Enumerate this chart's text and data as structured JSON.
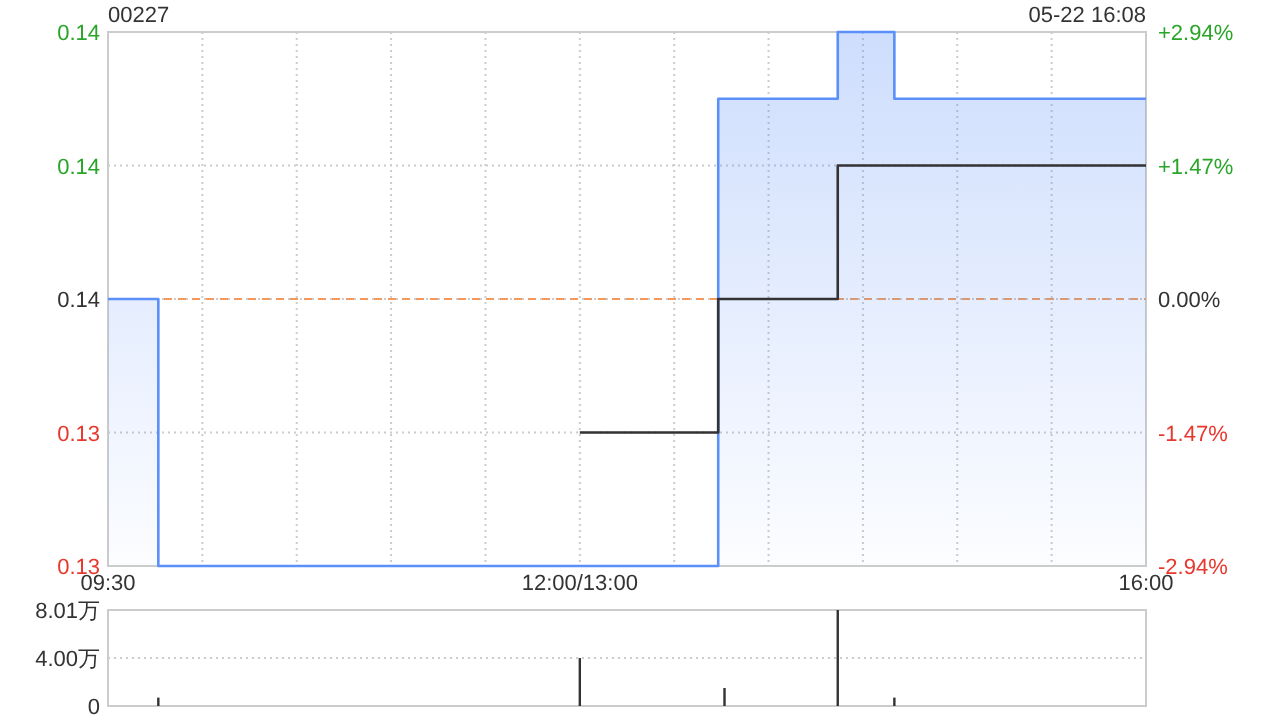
{
  "chart_data": [
    {
      "type": "step",
      "title": "00227",
      "annotations": [
        "05-22 16:08"
      ],
      "categories": [
        "09:30",
        null,
        null,
        null,
        null,
        null,
        null,
        null,
        null,
        null,
        null,
        null,
        null,
        null,
        null,
        null,
        null,
        null,
        null,
        null,
        null,
        null,
        null,
        null,
        null,
        null,
        null,
        null,
        null,
        null,
        null,
        null,
        null,
        null,
        null,
        null,
        null,
        null,
        null,
        null,
        null,
        null,
        null,
        null,
        null,
        null,
        null,
        null,
        null,
        null,
        null,
        null,
        null,
        null,
        null,
        null,
        null,
        null,
        null,
        null,
        null,
        null,
        null,
        null,
        null,
        null,
        null,
        null,
        null,
        null,
        null,
        null,
        null,
        null,
        null,
        "12:00/13:00",
        null,
        null,
        null,
        null,
        null,
        null,
        null,
        null,
        null,
        null,
        null,
        null,
        null,
        null,
        null,
        null,
        null,
        null,
        null,
        null,
        null,
        null,
        null,
        null,
        null,
        null,
        null,
        null,
        null,
        null,
        null,
        null,
        null,
        null,
        null,
        null,
        null,
        null,
        null,
        null,
        null,
        null,
        null,
        null,
        null,
        null,
        null,
        null,
        null,
        null,
        null,
        null,
        null,
        null,
        null,
        null,
        null,
        null,
        null,
        null,
        null,
        null,
        null,
        null,
        null,
        null,
        null,
        null,
        null,
        null,
        null,
        null,
        null,
        null,
        null,
        null,
        null,
        null,
        null,
        null,
        null,
        null,
        null,
        null,
        null,
        null,
        null,
        null,
        null,
        "16:00"
      ],
      "ylim": [
        0.132,
        0.14
      ],
      "yticks": [
        {
          "value": 0.14,
          "label": "0.14"
        },
        {
          "value": 0.138,
          "label": "0.14"
        },
        {
          "value": 0.136,
          "label": "0.14"
        },
        {
          "value": 0.134,
          "label": "0.13"
        },
        {
          "value": 0.132,
          "label": "0.13"
        }
      ],
      "y2lim": [
        -2.94,
        2.94
      ],
      "y2ticks": [
        {
          "value": 2.94,
          "label": "+2.94%"
        },
        {
          "value": 1.47,
          "label": "+1.47%"
        },
        {
          "value": 0,
          "label": "0.00%"
        },
        {
          "value": -1.47,
          "label": "-1.47%"
        },
        {
          "value": -2.94,
          "label": "-2.94%"
        }
      ],
      "grid": true,
      "marker": "none",
      "ref_lines": [
        {
          "axis": "y",
          "value": 0.136,
          "color": "#f29a5c",
          "line_style": "dashed"
        }
      ],
      "series": [
        {
          "type": "area",
          "color": "#5b8ff9",
          "values": [
            0.136,
            0.136,
            0.136,
            0.136,
            0.136,
            0.136,
            0.136,
            0.136,
            0.132,
            0.132,
            0.132,
            0.132,
            0.132,
            0.132,
            0.132,
            0.132,
            0.132,
            0.132,
            0.132,
            0.132,
            0.132,
            0.132,
            0.132,
            0.132,
            0.132,
            0.132,
            0.132,
            0.132,
            0.132,
            0.132,
            0.132,
            0.132,
            0.132,
            0.132,
            0.132,
            0.132,
            0.132,
            0.132,
            0.132,
            0.132,
            0.132,
            0.132,
            0.132,
            0.132,
            0.132,
            0.132,
            0.132,
            0.132,
            0.132,
            0.132,
            0.132,
            0.132,
            0.132,
            0.132,
            0.132,
            0.132,
            0.132,
            0.132,
            0.132,
            0.132,
            0.132,
            0.132,
            0.132,
            0.132,
            0.132,
            0.132,
            0.132,
            0.132,
            0.132,
            0.132,
            0.132,
            0.132,
            0.132,
            0.132,
            0.132,
            0.132,
            0.132,
            0.132,
            0.132,
            0.132,
            0.132,
            0.132,
            0.132,
            0.132,
            0.132,
            0.132,
            0.132,
            0.132,
            0.132,
            0.132,
            0.132,
            0.132,
            0.132,
            0.132,
            0.132,
            0.132,
            0.132,
            0.139,
            0.139,
            0.139,
            0.139,
            0.139,
            0.139,
            0.139,
            0.139,
            0.139,
            0.139,
            0.139,
            0.139,
            0.139,
            0.139,
            0.139,
            0.139,
            0.139,
            0.139,
            0.139,
            0.14,
            0.14,
            0.14,
            0.14,
            0.14,
            0.14,
            0.14,
            0.14,
            0.14,
            0.139,
            0.139,
            0.139,
            0.139,
            0.139,
            0.139,
            0.139,
            0.139,
            0.139,
            0.139,
            0.139,
            0.139,
            0.139,
            0.139,
            0.139,
            0.139,
            0.139,
            0.139,
            0.139,
            0.139,
            0.139,
            0.139,
            0.139,
            0.139,
            0.139,
            0.139,
            0.139,
            0.139,
            0.139,
            0.139,
            0.139,
            0.139,
            0.139,
            0.139,
            0.139,
            0.139,
            0.139,
            0.139,
            0.139,
            0.139,
            0.139
          ]
        },
        {
          "type": "step",
          "color": "#333333",
          "values": [
            null,
            null,
            null,
            null,
            null,
            null,
            null,
            null,
            null,
            null,
            null,
            null,
            null,
            null,
            null,
            null,
            null,
            null,
            null,
            null,
            null,
            null,
            null,
            null,
            null,
            null,
            null,
            null,
            null,
            null,
            null,
            null,
            null,
            null,
            null,
            null,
            null,
            null,
            null,
            null,
            null,
            null,
            null,
            null,
            null,
            null,
            null,
            null,
            null,
            null,
            null,
            null,
            null,
            null,
            null,
            null,
            null,
            null,
            null,
            null,
            null,
            null,
            null,
            null,
            null,
            null,
            null,
            null,
            null,
            null,
            null,
            null,
            null,
            null,
            null,
            0.134,
            0.134,
            0.134,
            0.134,
            0.134,
            0.134,
            0.134,
            0.134,
            0.134,
            0.134,
            0.134,
            0.134,
            0.134,
            0.134,
            0.134,
            0.134,
            0.134,
            0.134,
            0.134,
            0.134,
            0.134,
            0.134,
            0.136,
            0.136,
            0.136,
            0.136,
            0.136,
            0.136,
            0.136,
            0.136,
            0.136,
            0.136,
            0.136,
            0.136,
            0.136,
            0.136,
            0.136,
            0.136,
            0.136,
            0.136,
            0.136,
            0.138,
            0.138,
            0.138,
            0.138,
            0.138,
            0.138,
            0.138,
            0.138,
            0.138,
            0.138,
            0.138,
            0.138,
            0.138,
            0.138,
            0.138,
            0.138,
            0.138,
            0.138,
            0.138,
            0.138,
            0.138,
            0.138,
            0.138,
            0.138,
            0.138,
            0.138,
            0.138,
            0.138,
            0.138,
            0.138,
            0.138,
            0.138,
            0.138,
            0.138,
            0.138,
            0.138,
            0.138,
            0.138,
            0.138,
            0.138,
            0.138,
            0.138,
            0.138,
            0.138,
            0.138,
            0.138,
            0.138,
            0.138,
            0.138,
            0.138
          ]
        }
      ]
    },
    {
      "type": "bar",
      "ylim": [
        0,
        8.01
      ],
      "yticks": [
        0,
        {
          "value": 4.0,
          "label": "4.00万"
        },
        {
          "value": 8.01,
          "label": "8.01万"
        }
      ],
      "grid": "y",
      "categories": [
        null,
        null,
        null,
        null,
        null,
        null,
        null,
        null,
        null,
        null,
        null,
        null,
        null,
        null,
        null,
        null,
        null,
        null,
        null,
        null,
        null,
        null,
        null,
        null,
        null,
        null,
        null,
        null,
        null,
        null,
        null,
        null,
        null,
        null,
        null,
        null,
        null,
        null,
        null,
        null,
        null,
        null,
        null,
        null,
        null,
        null,
        null,
        null,
        null,
        null,
        null,
        null,
        null,
        null,
        null,
        null,
        null,
        null,
        null,
        null,
        null,
        null,
        null,
        null,
        null,
        null,
        null,
        null,
        null,
        null,
        null,
        null,
        null,
        null,
        null,
        null,
        null,
        null,
        null,
        null,
        null,
        null,
        null,
        null,
        null,
        null,
        null,
        null,
        null,
        null,
        null,
        null,
        null,
        null,
        null,
        null,
        null,
        null,
        null,
        null,
        null,
        null,
        null,
        null,
        null,
        null,
        null,
        null,
        null,
        null,
        null,
        null,
        null,
        null,
        null,
        null,
        null,
        null,
        null,
        null,
        null,
        null,
        null,
        null,
        null,
        null,
        null,
        null,
        null,
        null,
        null,
        null,
        null,
        null,
        null,
        null,
        null,
        null,
        null,
        null,
        null,
        null,
        null,
        null,
        null,
        null,
        null,
        null,
        null,
        null,
        null,
        null,
        null,
        null,
        null,
        null,
        null,
        null,
        null,
        null,
        null,
        null,
        null,
        null,
        null,
        null
      ],
      "values": [
        null,
        null,
        null,
        null,
        null,
        null,
        null,
        null,
        0.7,
        null,
        null,
        null,
        null,
        null,
        null,
        null,
        null,
        null,
        null,
        null,
        null,
        null,
        null,
        null,
        null,
        null,
        null,
        null,
        null,
        null,
        null,
        null,
        null,
        null,
        null,
        null,
        null,
        null,
        null,
        null,
        null,
        null,
        null,
        null,
        null,
        null,
        null,
        null,
        null,
        null,
        null,
        null,
        null,
        null,
        null,
        null,
        null,
        null,
        null,
        null,
        null,
        null,
        null,
        null,
        null,
        null,
        null,
        null,
        null,
        null,
        null,
        null,
        null,
        null,
        null,
        4.0,
        null,
        null,
        null,
        null,
        null,
        null,
        null,
        null,
        null,
        null,
        null,
        null,
        null,
        null,
        null,
        null,
        null,
        null,
        null,
        null,
        null,
        null,
        1.5,
        null,
        null,
        null,
        null,
        null,
        null,
        null,
        null,
        null,
        null,
        null,
        null,
        null,
        null,
        null,
        null,
        null,
        8.01,
        null,
        null,
        null,
        null,
        null,
        null,
        null,
        null,
        0.7,
        null,
        null,
        null,
        null,
        null,
        null,
        null,
        null,
        null,
        null,
        null,
        null,
        null,
        null,
        null,
        null,
        null,
        null,
        null,
        null,
        null,
        null,
        null,
        null,
        null,
        null,
        null,
        null,
        null,
        null,
        null,
        null,
        null,
        null,
        null,
        null,
        null,
        null,
        null,
        null
      ],
      "color": "#333333"
    }
  ]
}
